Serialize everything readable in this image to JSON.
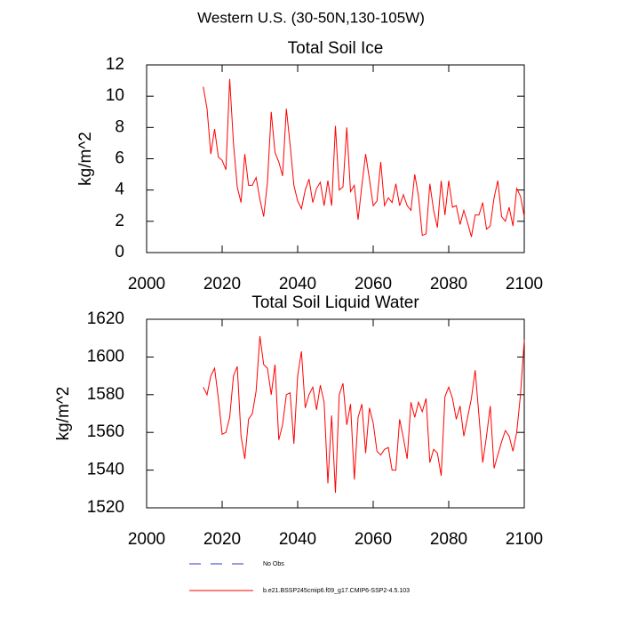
{
  "suptitle": "Western U.S. (30-50N,130-105W)",
  "chart_data": [
    {
      "type": "line",
      "title": "Total Soil Ice",
      "y_label": "kg/m^2",
      "x": [
        2015,
        2016,
        2017,
        2018,
        2019,
        2020,
        2021,
        2022,
        2023,
        2024,
        2025,
        2026,
        2027,
        2028,
        2029,
        2030,
        2031,
        2032,
        2033,
        2034,
        2035,
        2036,
        2037,
        2038,
        2039,
        2040,
        2041,
        2042,
        2043,
        2044,
        2045,
        2046,
        2047,
        2048,
        2049,
        2050,
        2051,
        2052,
        2053,
        2054,
        2055,
        2056,
        2057,
        2058,
        2059,
        2060,
        2061,
        2062,
        2063,
        2064,
        2065,
        2066,
        2067,
        2068,
        2069,
        2070,
        2071,
        2072,
        2073,
        2074,
        2075,
        2076,
        2077,
        2078,
        2079,
        2080,
        2081,
        2082,
        2083,
        2084,
        2085,
        2086,
        2087,
        2088,
        2089,
        2090,
        2091,
        2092,
        2093,
        2094,
        2095,
        2096,
        2097,
        2098,
        2099,
        2100
      ],
      "series": [
        {
          "color": "#ff0000",
          "values": [
            10.6,
            9.2,
            6.3,
            7.9,
            6.1,
            5.9,
            5.3,
            11.1,
            7.0,
            4.2,
            3.2,
            6.3,
            4.3,
            4.3,
            4.8,
            3.4,
            2.3,
            4.5,
            9.0,
            6.4,
            5.8,
            4.9,
            9.2,
            6.9,
            4.3,
            3.3,
            2.8,
            4.0,
            4.7,
            3.2,
            4.1,
            4.5,
            3.0,
            4.6,
            3.0,
            8.1,
            4.0,
            4.2,
            8.0,
            3.9,
            4.3,
            2.1,
            4.3,
            6.3,
            4.7,
            3.0,
            3.3,
            5.8,
            3.0,
            3.5,
            3.2,
            4.4,
            3.0,
            3.7,
            3.0,
            2.7,
            5.0,
            3.6,
            1.1,
            1.2,
            4.4,
            2.7,
            1.6,
            4.6,
            2.4,
            4.6,
            2.9,
            3.0,
            1.8,
            2.7,
            1.9,
            1.0,
            2.4,
            2.4,
            3.2,
            1.5,
            1.7,
            3.5,
            4.6,
            2.3,
            2.0,
            2.9,
            1.7,
            4.1,
            3.6,
            2.3
          ]
        }
      ],
      "xlim": [
        2000,
        2100
      ],
      "xticks": [
        2000,
        2020,
        2040,
        2060,
        2080,
        2100
      ],
      "ylim": [
        0,
        12
      ],
      "yticks": [
        0,
        2,
        4,
        6,
        8,
        10,
        12
      ]
    },
    {
      "type": "line",
      "title": "Total Soil Liquid Water",
      "y_label": "kg/m^2",
      "x": [
        2015,
        2016,
        2017,
        2018,
        2019,
        2020,
        2021,
        2022,
        2023,
        2024,
        2025,
        2026,
        2027,
        2028,
        2029,
        2030,
        2031,
        2032,
        2033,
        2034,
        2035,
        2036,
        2037,
        2038,
        2039,
        2040,
        2041,
        2042,
        2043,
        2044,
        2045,
        2046,
        2047,
        2048,
        2049,
        2050,
        2051,
        2052,
        2053,
        2054,
        2055,
        2056,
        2057,
        2058,
        2059,
        2060,
        2061,
        2062,
        2063,
        2064,
        2065,
        2066,
        2067,
        2068,
        2069,
        2070,
        2071,
        2072,
        2073,
        2074,
        2075,
        2076,
        2077,
        2078,
        2079,
        2080,
        2081,
        2082,
        2083,
        2084,
        2085,
        2086,
        2087,
        2088,
        2089,
        2090,
        2091,
        2092,
        2093,
        2094,
        2095,
        2096,
        2097,
        2098,
        2099,
        2100
      ],
      "series": [
        {
          "color": "#ff0000",
          "values": [
            1584,
            1580,
            1590,
            1594,
            1578,
            1559,
            1560,
            1568,
            1590,
            1595,
            1558,
            1546,
            1567,
            1570,
            1582,
            1611,
            1596,
            1594,
            1580,
            1596,
            1556,
            1564,
            1580,
            1581,
            1554,
            1590,
            1603,
            1573,
            1580,
            1584,
            1572,
            1585,
            1576,
            1533,
            1569,
            1528,
            1580,
            1586,
            1564,
            1575,
            1535,
            1568,
            1575,
            1549,
            1573,
            1565,
            1550,
            1548,
            1551,
            1552,
            1540,
            1540,
            1567,
            1557,
            1546,
            1576,
            1568,
            1576,
            1571,
            1578,
            1544,
            1551,
            1549,
            1537,
            1579,
            1584,
            1578,
            1567,
            1574,
            1558,
            1568,
            1578,
            1593,
            1569,
            1544,
            1558,
            1574,
            1541,
            1548,
            1555,
            1561,
            1558,
            1550,
            1560,
            1580,
            1609
          ]
        }
      ],
      "xlim": [
        2000,
        2100
      ],
      "xticks": [
        2000,
        2020,
        2040,
        2060,
        2080,
        2100
      ],
      "ylim": [
        1520,
        1620
      ],
      "yticks": [
        1520,
        1540,
        1560,
        1580,
        1600,
        1620
      ]
    }
  ],
  "legend": [
    {
      "name": "No Obs",
      "color": "#3333cc",
      "dashed": true
    },
    {
      "name": "b.e21.BSSP245cmip6.f09_g17.CMIP6-SSP2-4.5.103",
      "color": "#ff0000",
      "dashed": false
    }
  ]
}
